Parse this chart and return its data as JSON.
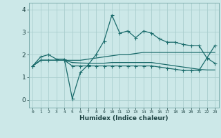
{
  "xlabel": "Humidex (Indice chaleur)",
  "background_color": "#cce8e8",
  "grid_color": "#aacece",
  "line_color": "#1a6b6b",
  "xlim": [
    -0.5,
    23.5
  ],
  "ylim": [
    -0.35,
    4.3
  ],
  "xtick_labels": [
    "0",
    "1",
    "2",
    "3",
    "4",
    "5",
    "6",
    "7",
    "8",
    "9",
    "10",
    "11",
    "12",
    "13",
    "14",
    "15",
    "16",
    "17",
    "18",
    "19",
    "20",
    "21",
    "22",
    "23"
  ],
  "yticks": [
    0,
    1,
    2,
    3,
    4
  ],
  "line1_x": [
    0,
    1,
    2,
    3,
    4,
    5,
    6,
    7,
    8,
    9,
    10,
    11,
    12,
    13,
    14,
    15,
    16,
    17,
    18,
    19,
    20,
    21,
    22,
    23
  ],
  "line1_y": [
    1.5,
    1.9,
    2.0,
    1.8,
    1.8,
    0.05,
    1.2,
    1.55,
    2.0,
    2.6,
    3.75,
    2.95,
    3.05,
    2.75,
    3.05,
    2.95,
    2.7,
    2.55,
    2.55,
    2.45,
    2.4,
    2.4,
    1.85,
    2.4
  ],
  "line2_x": [
    0,
    1,
    2,
    3,
    4,
    5,
    6,
    7,
    8,
    9,
    10,
    11,
    12,
    13,
    14,
    15,
    16,
    17,
    18,
    19,
    20,
    21,
    22,
    23
  ],
  "line2_y": [
    1.5,
    1.75,
    1.75,
    1.75,
    1.75,
    1.75,
    1.75,
    1.8,
    1.85,
    1.9,
    1.95,
    2.0,
    2.0,
    2.05,
    2.1,
    2.1,
    2.1,
    2.1,
    2.1,
    2.1,
    2.1,
    2.1,
    2.1,
    2.1
  ],
  "line3_x": [
    0,
    1,
    2,
    3,
    4,
    5,
    6,
    7,
    8,
    9,
    10,
    11,
    12,
    13,
    14,
    15,
    16,
    17,
    18,
    19,
    20,
    21,
    22,
    23
  ],
  "line3_y": [
    1.5,
    1.75,
    1.75,
    1.75,
    1.75,
    1.65,
    1.63,
    1.62,
    1.62,
    1.62,
    1.65,
    1.65,
    1.65,
    1.65,
    1.65,
    1.65,
    1.6,
    1.55,
    1.5,
    1.45,
    1.4,
    1.35,
    1.32,
    1.32
  ],
  "line4_x": [
    0,
    1,
    2,
    3,
    4,
    5,
    6,
    7,
    8,
    9,
    10,
    11,
    12,
    13,
    14,
    15,
    16,
    17,
    18,
    19,
    20,
    21,
    22,
    23
  ],
  "line4_y": [
    1.5,
    1.75,
    1.75,
    1.75,
    1.75,
    1.5,
    1.5,
    1.5,
    1.5,
    1.5,
    1.5,
    1.5,
    1.5,
    1.5,
    1.5,
    1.5,
    1.45,
    1.4,
    1.35,
    1.3,
    1.3,
    1.3,
    1.85,
    1.62
  ],
  "linewidth": 0.9,
  "markersize": 2.0
}
